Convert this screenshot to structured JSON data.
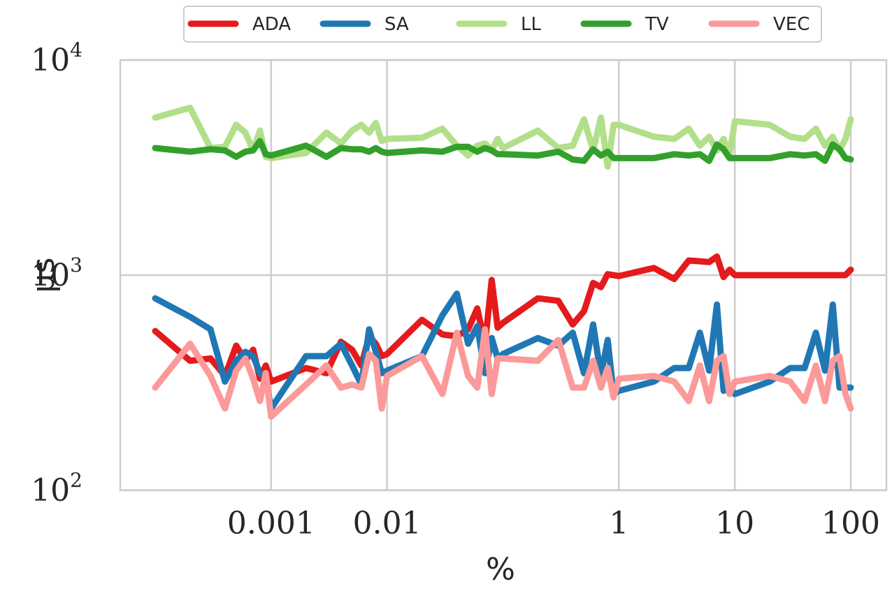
{
  "chart_data": {
    "type": "line",
    "xlabel": "%",
    "ylabel": "µs",
    "xscale": "log",
    "yscale": "log",
    "xlim": [
      0.0001,
      100
    ],
    "ylim": [
      100,
      10000
    ],
    "grid": true,
    "legend_position": "top-center",
    "x_ticks": [
      {
        "value": 0.001,
        "label": "0.001"
      },
      {
        "value": 0.01,
        "label": "0.01"
      },
      {
        "value": 1,
        "label": "1"
      },
      {
        "value": 10,
        "label": "10"
      },
      {
        "value": 100,
        "label": "100"
      }
    ],
    "y_ticks": [
      {
        "value": 100,
        "base": "10",
        "exp": "2"
      },
      {
        "value": 1000,
        "base": "10",
        "exp": "3"
      },
      {
        "value": 10000,
        "base": "10",
        "exp": "4"
      }
    ],
    "x": [
      0.0001,
      0.0002,
      0.0003,
      0.0004,
      0.0005,
      0.0006,
      0.0007,
      0.0008,
      0.0009,
      0.001,
      0.002,
      0.003,
      0.004,
      0.005,
      0.006,
      0.007,
      0.008,
      0.009,
      0.01,
      0.02,
      0.03,
      0.04,
      0.05,
      0.06,
      0.07,
      0.08,
      0.09,
      0.1,
      0.2,
      0.3,
      0.4,
      0.5,
      0.6,
      0.7,
      0.8,
      0.9,
      1,
      2,
      3,
      4,
      5,
      6,
      7,
      8,
      9,
      10,
      20,
      30,
      40,
      50,
      60,
      70,
      80,
      90,
      100
    ],
    "series": [
      {
        "name": "ADA",
        "color": "#e41a1c",
        "values": [
          550,
          400,
          410,
          340,
          470,
          400,
          450,
          330,
          380,
          320,
          370,
          350,
          490,
          450,
          380,
          520,
          480,
          420,
          430,
          620,
          530,
          520,
          560,
          700,
          480,
          950,
          570,
          600,
          780,
          760,
          590,
          680,
          920,
          880,
          1010,
          1000,
          990,
          1080,
          960,
          1170,
          1160,
          1150,
          1220,
          980,
          1060,
          1000,
          1000,
          1000,
          1000,
          1000,
          1000,
          1000,
          1000,
          1000,
          1060
        ]
      },
      {
        "name": "SA",
        "color": "#1f78b4",
        "values": [
          780,
          640,
          560,
          320,
          400,
          440,
          420,
          350,
          330,
          240,
          420,
          420,
          480,
          380,
          310,
          560,
          440,
          350,
          360,
          420,
          650,
          820,
          480,
          580,
          350,
          510,
          410,
          430,
          510,
          470,
          540,
          350,
          590,
          340,
          500,
          280,
          290,
          320,
          370,
          370,
          540,
          360,
          730,
          290,
          300,
          280,
          320,
          370,
          370,
          540,
          360,
          730,
          300,
          300,
          300
        ]
      },
      {
        "name": "LL",
        "color": "#b2df8a",
        "values": [
          5400,
          6000,
          3900,
          3950,
          5000,
          4600,
          3800,
          4700,
          3550,
          3500,
          3700,
          4600,
          4100,
          4700,
          5000,
          4600,
          5100,
          4200,
          4300,
          4350,
          4800,
          4000,
          3600,
          4000,
          4100,
          3800,
          4300,
          3900,
          4700,
          3900,
          4000,
          5300,
          3800,
          5400,
          3200,
          5000,
          5000,
          4400,
          4300,
          4800,
          4000,
          4400,
          3800,
          4300,
          3600,
          5200,
          5000,
          4400,
          4300,
          4800,
          4000,
          4400,
          3800,
          4300,
          5300
        ]
      },
      {
        "name": "TV",
        "color": "#33a02c",
        "values": [
          3900,
          3750,
          3850,
          3800,
          3550,
          3750,
          3800,
          4200,
          3650,
          3600,
          4000,
          3550,
          3900,
          3850,
          3850,
          3750,
          3900,
          3750,
          3700,
          3800,
          3750,
          3950,
          3950,
          3750,
          3900,
          3800,
          3650,
          3650,
          3600,
          3750,
          3450,
          3400,
          3850,
          3600,
          3750,
          3500,
          3500,
          3500,
          3650,
          3600,
          3650,
          3400,
          4050,
          3850,
          3500,
          3500,
          3500,
          3650,
          3600,
          3650,
          3400,
          4050,
          3850,
          3500,
          3450
        ]
      },
      {
        "name": "VEC",
        "color": "#fb9a99",
        "values": [
          300,
          480,
          340,
          240,
          360,
          410,
          330,
          260,
          350,
          220,
          310,
          380,
          300,
          310,
          300,
          430,
          400,
          240,
          340,
          420,
          280,
          540,
          340,
          300,
          560,
          280,
          410,
          410,
          400,
          500,
          300,
          300,
          400,
          300,
          370,
          270,
          330,
          340,
          320,
          260,
          380,
          260,
          400,
          420,
          280,
          320,
          340,
          320,
          260,
          380,
          260,
          400,
          420,
          280,
          240
        ]
      }
    ]
  }
}
